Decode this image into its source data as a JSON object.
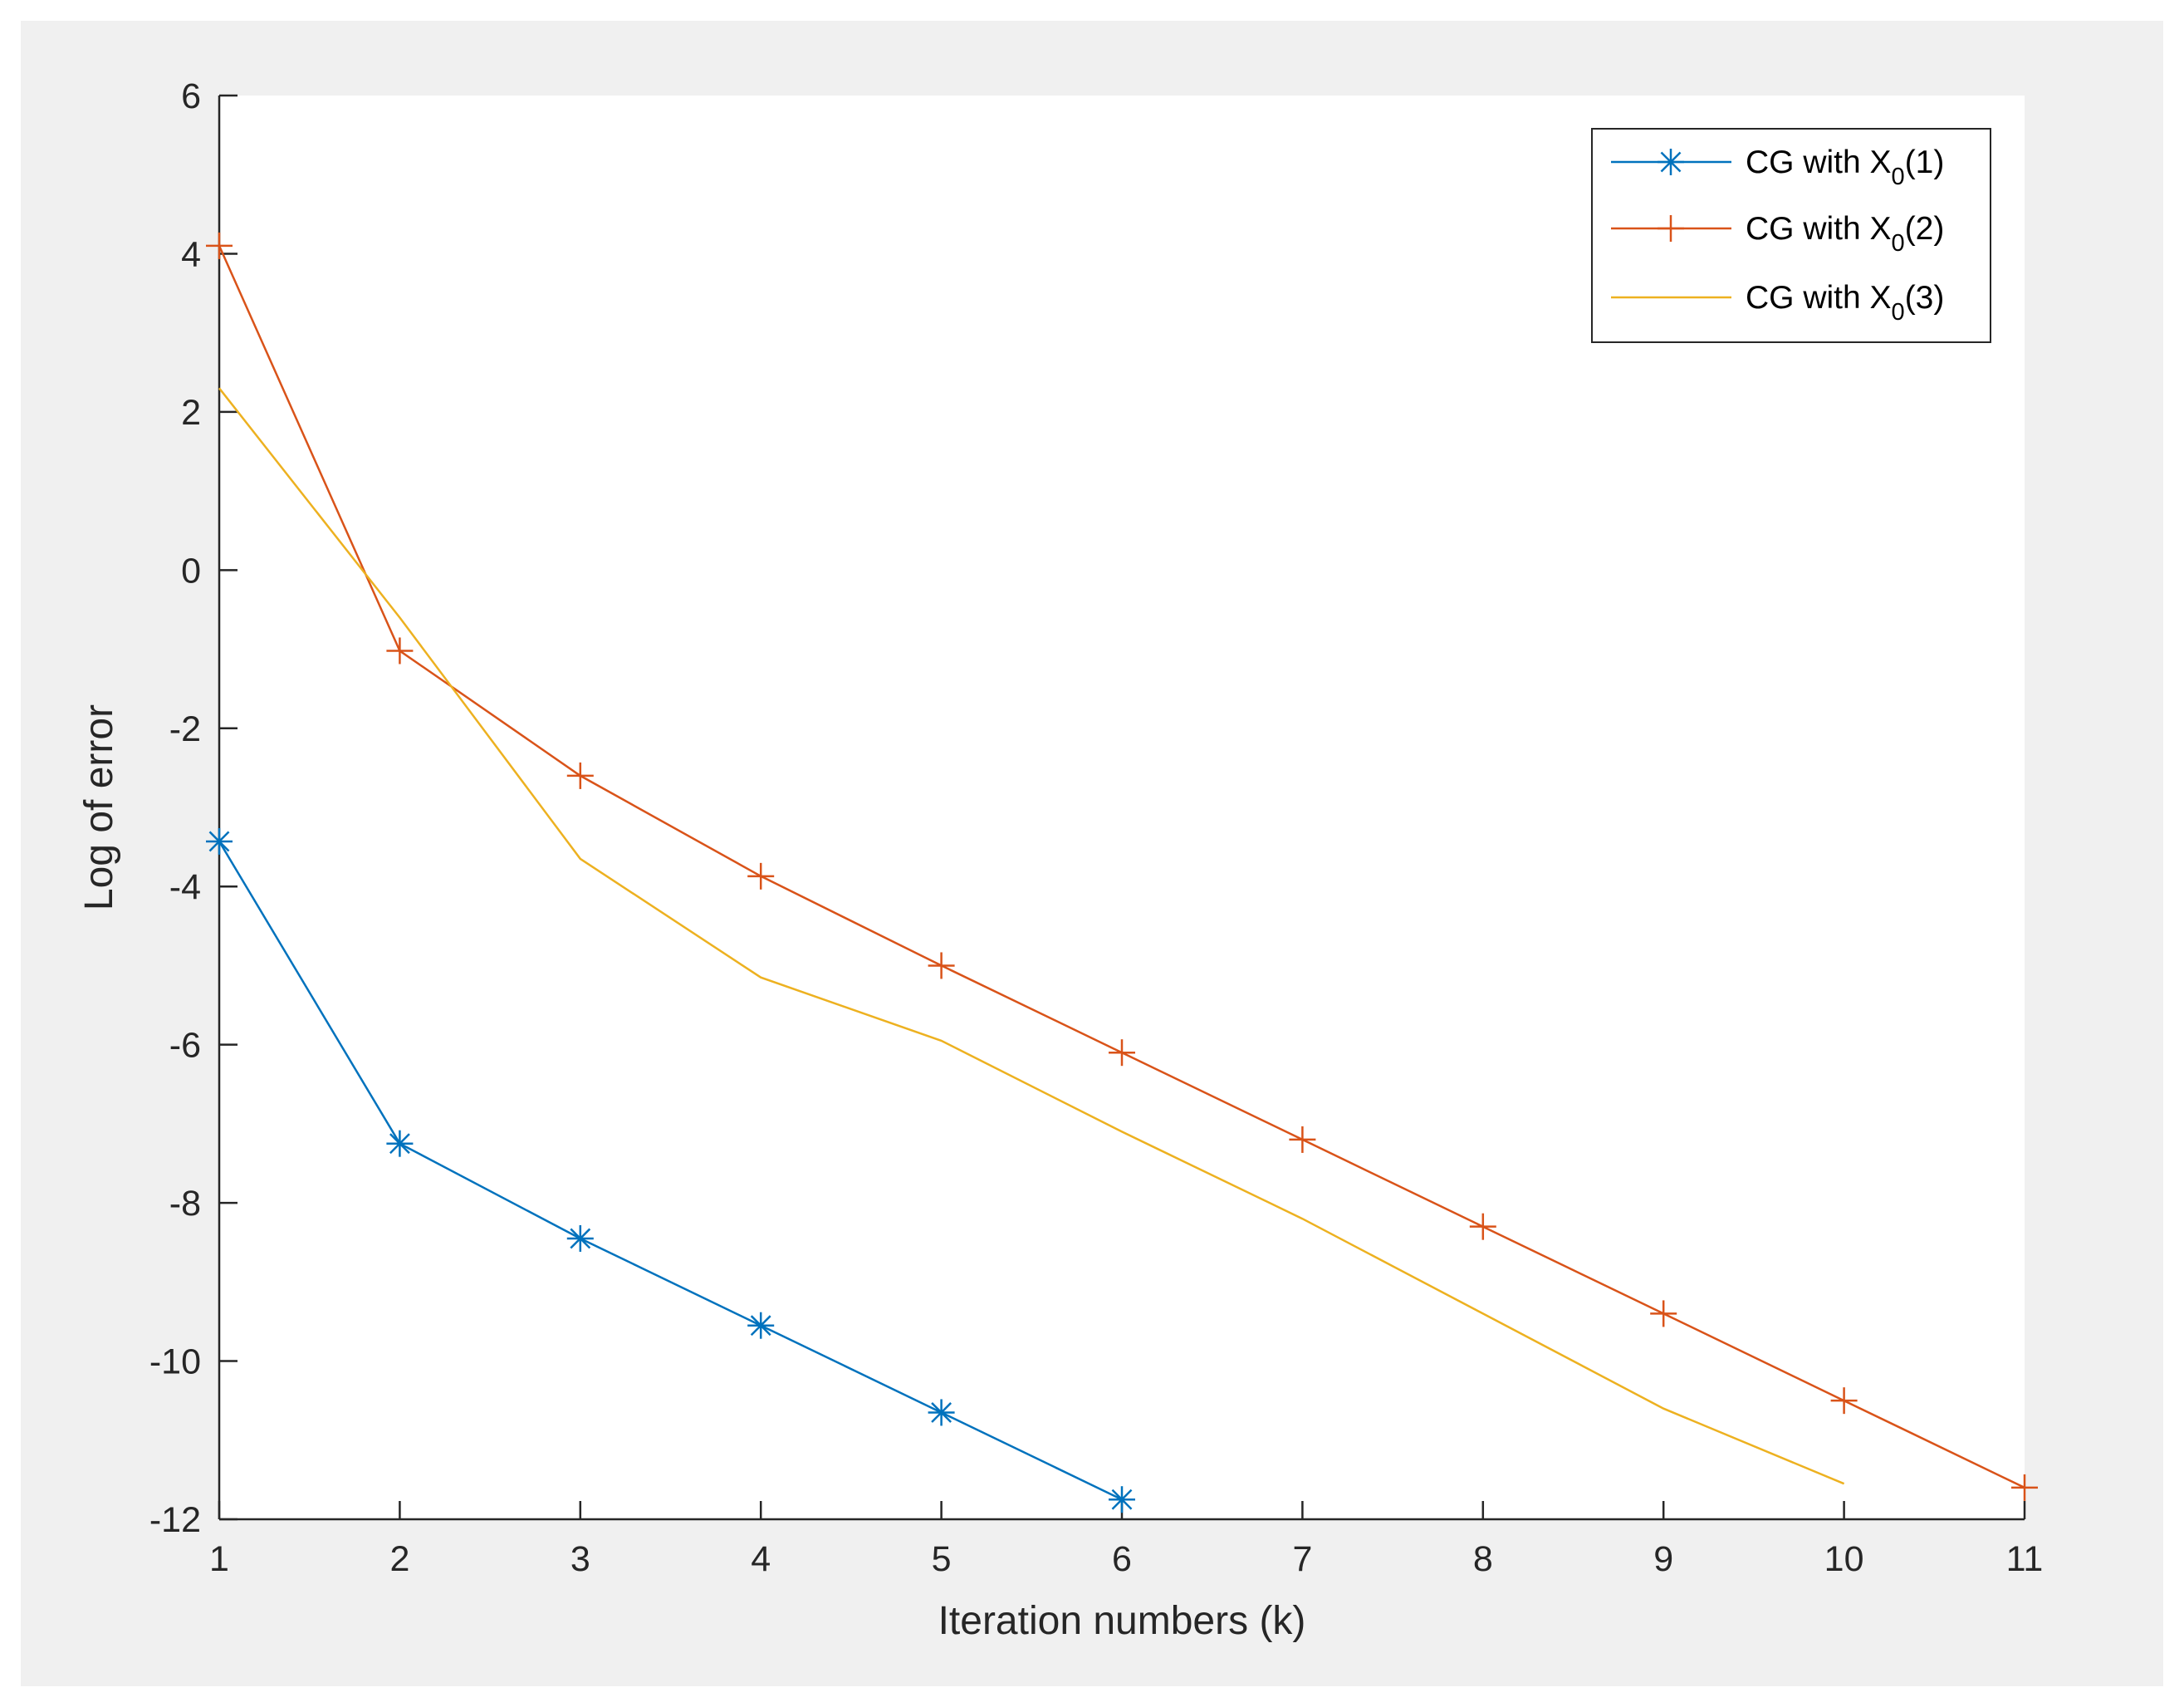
{
  "chart_data": {
    "type": "line",
    "title": "",
    "xlabel": "Iteration numbers (k)",
    "ylabel": "Log of error",
    "xlim": [
      1,
      11
    ],
    "ylim": [
      -12,
      6
    ],
    "xticks": [
      "1",
      "2",
      "3",
      "4",
      "5",
      "6",
      "7",
      "8",
      "9",
      "10",
      "11"
    ],
    "yticks": [
      "-12",
      "-10",
      "-8",
      "-6",
      "-4",
      "-2",
      "0",
      "2",
      "4",
      "6"
    ],
    "grid": false,
    "legend_position": "top-right",
    "series": [
      {
        "legend_prefix": "CG with X",
        "legend_sub": "0",
        "legend_suffix": "(1)",
        "color": "#0072BD",
        "marker": "asterisk",
        "x": [
          1,
          2,
          3,
          4,
          5,
          6
        ],
        "y": [
          -3.43,
          -7.25,
          -8.45,
          -9.55,
          -10.65,
          -11.75
        ]
      },
      {
        "legend_prefix": "CG with X",
        "legend_sub": "0",
        "legend_suffix": "(2)",
        "color": "#D95319",
        "marker": "plus",
        "x": [
          1,
          2,
          3,
          4,
          5,
          6,
          7,
          8,
          9,
          10,
          11
        ],
        "y": [
          4.1,
          -1.02,
          -2.6,
          -3.87,
          -5.0,
          -6.1,
          -7.2,
          -8.3,
          -9.4,
          -10.5,
          -11.6
        ]
      },
      {
        "legend_prefix": "CG with X",
        "legend_sub": "0",
        "legend_suffix": "(3)",
        "color": "#EDB120",
        "marker": "none",
        "x": [
          1,
          2,
          3,
          4,
          5,
          6,
          7,
          8,
          9,
          10
        ],
        "y": [
          2.3,
          -0.6,
          -3.65,
          -5.15,
          -5.95,
          -7.1,
          -8.2,
          -9.4,
          -10.6,
          -11.55
        ]
      }
    ]
  }
}
